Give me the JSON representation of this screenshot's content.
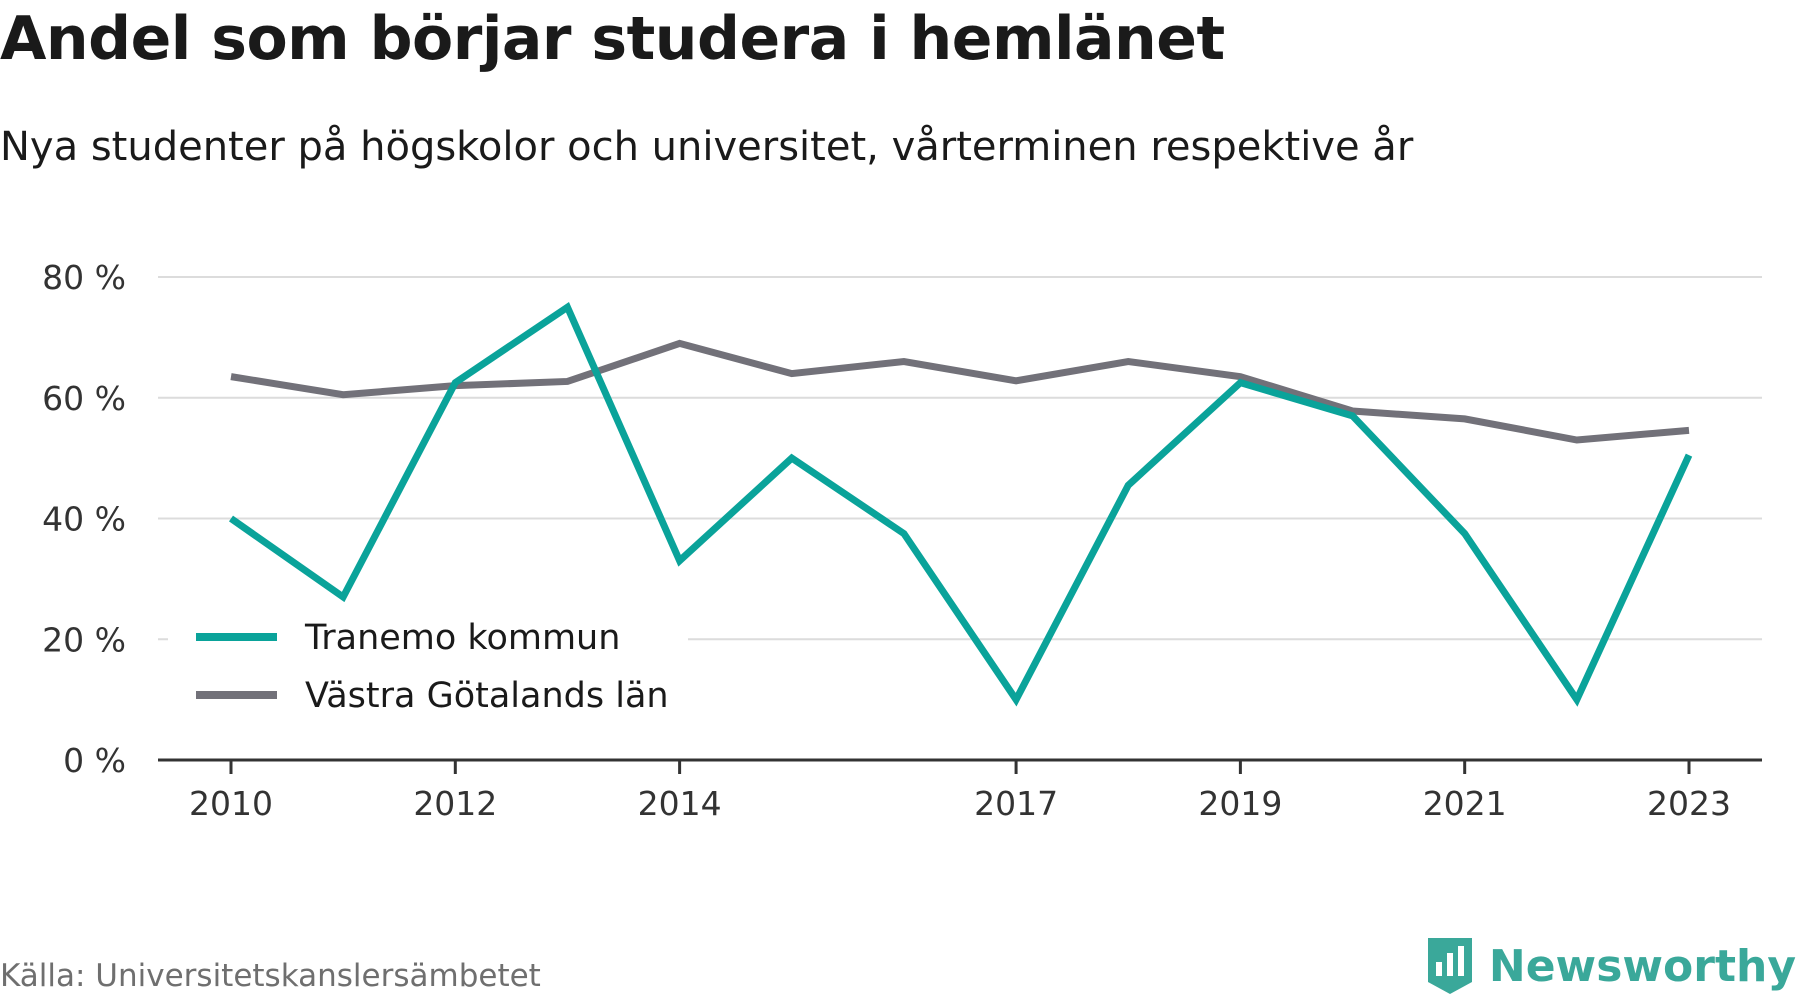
{
  "title": "Andel som börjar studera i hemlänet",
  "subtitle": "Nya studenter på högskolor och universitet, vårterminen respektive år",
  "source": "Källa: Universitetskanslersämbetet",
  "brand": "Newsworthy",
  "colors": {
    "accent": "#0aa39a",
    "secondary": "#727179",
    "grid": "#dcdcdc",
    "axis": "#333333",
    "brand": "#3aa89a"
  },
  "chart_data": {
    "type": "line",
    "x": [
      2010,
      2011,
      2012,
      2013,
      2014,
      2015,
      2016,
      2017,
      2018,
      2019,
      2020,
      2021,
      2022,
      2023
    ],
    "x_ticks": [
      2010,
      2012,
      2014,
      2017,
      2019,
      2021,
      2023
    ],
    "y_ticks": [
      0,
      20,
      40,
      60,
      80
    ],
    "y_tick_labels": [
      "0 %",
      "20 %",
      "40 %",
      "60 %",
      "80 %"
    ],
    "ylim": [
      0,
      80
    ],
    "grid": true,
    "legend_position": "bottom-left",
    "series": [
      {
        "name": "Tranemo kommun",
        "color": "#0aa39a",
        "values": [
          40,
          27,
          62.5,
          75,
          33,
          50,
          37.5,
          10,
          45.5,
          62.5,
          57,
          37.5,
          10,
          50.5
        ]
      },
      {
        "name": "Västra Götalands län",
        "color": "#727179",
        "values": [
          63.5,
          60.5,
          62,
          62.7,
          69,
          64,
          66,
          62.8,
          66,
          63.5,
          57.8,
          56.5,
          53,
          54.6
        ]
      }
    ]
  }
}
